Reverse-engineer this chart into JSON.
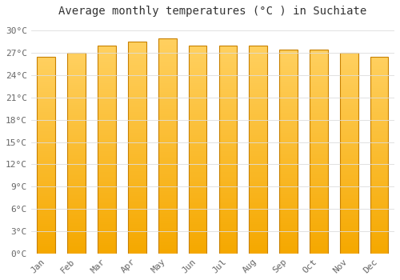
{
  "title": "Average monthly temperatures (°C ) in Suchiate",
  "months": [
    "Jan",
    "Feb",
    "Mar",
    "Apr",
    "May",
    "Jun",
    "Jul",
    "Aug",
    "Sep",
    "Oct",
    "Nov",
    "Dec"
  ],
  "temperatures": [
    26.5,
    27.0,
    28.0,
    28.5,
    29.0,
    28.0,
    28.0,
    28.0,
    27.5,
    27.5,
    27.0,
    26.5
  ],
  "bar_color_bottom": "#F5A800",
  "bar_color_top": "#FFD060",
  "bar_edge_color": "#C88000",
  "background_color": "#FFFFFF",
  "grid_color": "#DDDDDD",
  "ylim": [
    0,
    31
  ],
  "yticks": [
    0,
    3,
    6,
    9,
    12,
    15,
    18,
    21,
    24,
    27,
    30
  ],
  "title_fontsize": 10,
  "tick_fontsize": 8,
  "bar_width": 0.6
}
